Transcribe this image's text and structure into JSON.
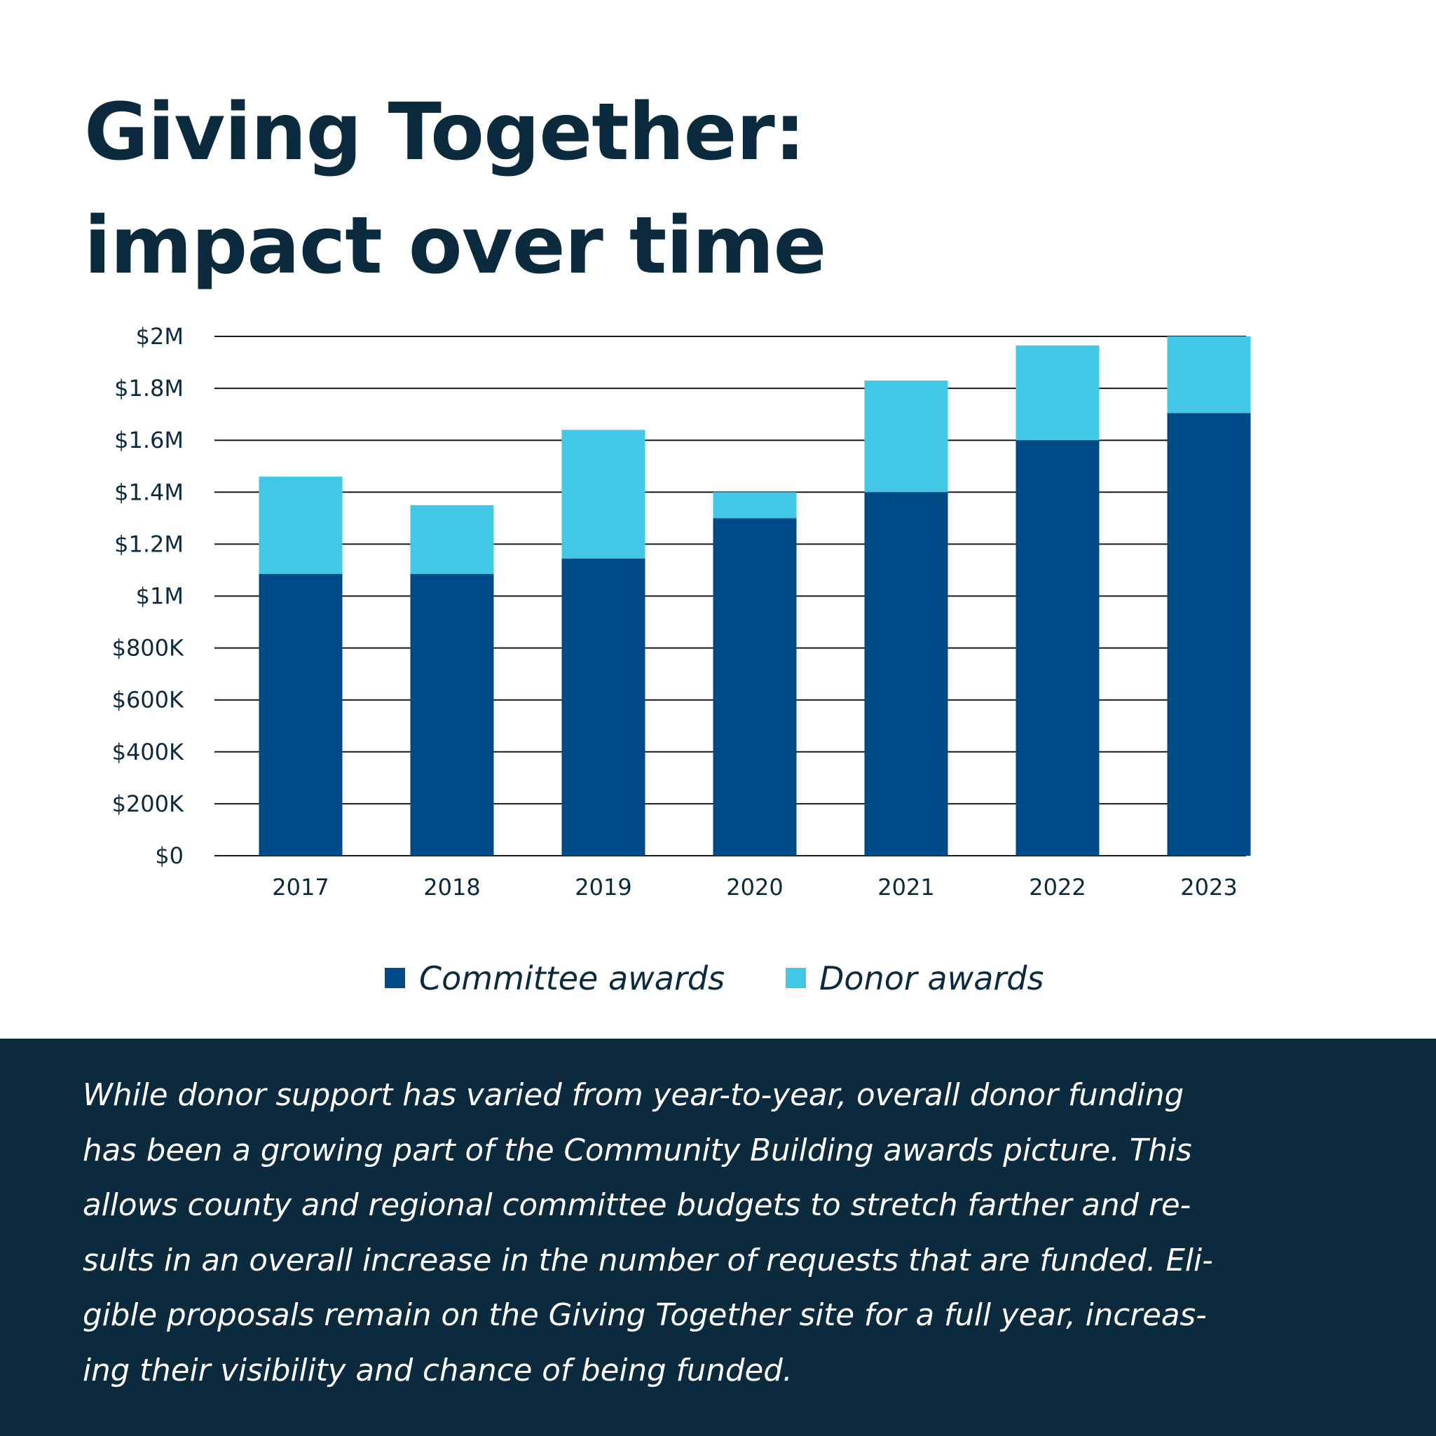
{
  "title_lines": [
    "Giving Together:",
    "impact over time"
  ],
  "chart_data": {
    "type": "bar",
    "stacked": true,
    "title": "Giving Together: impact over time",
    "categories": [
      "2017",
      "2018",
      "2019",
      "2020",
      "2021",
      "2022",
      "2023"
    ],
    "series": [
      {
        "name": "Committee awards",
        "color": "#004b87",
        "values": [
          1085000,
          1085000,
          1145000,
          1300000,
          1400000,
          1600000,
          1705000
        ]
      },
      {
        "name": "Donor awards",
        "color": "#42c8e6",
        "values": [
          375000,
          265000,
          495000,
          100000,
          430000,
          365000,
          295000
        ]
      }
    ],
    "ylim": [
      0,
      2000000
    ],
    "yticks": [
      0,
      200000,
      400000,
      600000,
      800000,
      1000000,
      1200000,
      1400000,
      1600000,
      1800000,
      2000000
    ],
    "ytick_labels": [
      "$0",
      "$200K",
      "$400K",
      "$600K",
      "$800K",
      "$1M",
      "$1.2M",
      "$1.4M",
      "$1.6M",
      "$1.8M",
      "$2M"
    ],
    "grid": true,
    "legend_position": "bottom-center"
  },
  "footer_lines": [
    "While donor support has varied from year-to-year, overall donor funding",
    "has been a growing part of the Community Building awards picture. This",
    "allows county and regional committee budgets to stretch farther and re-",
    "sults in an overall increase in the number of requests that are funded. Eli-",
    "gible proposals remain on the Giving Together site for a full year, increas-",
    "ing their visibility and chance of being funded."
  ]
}
